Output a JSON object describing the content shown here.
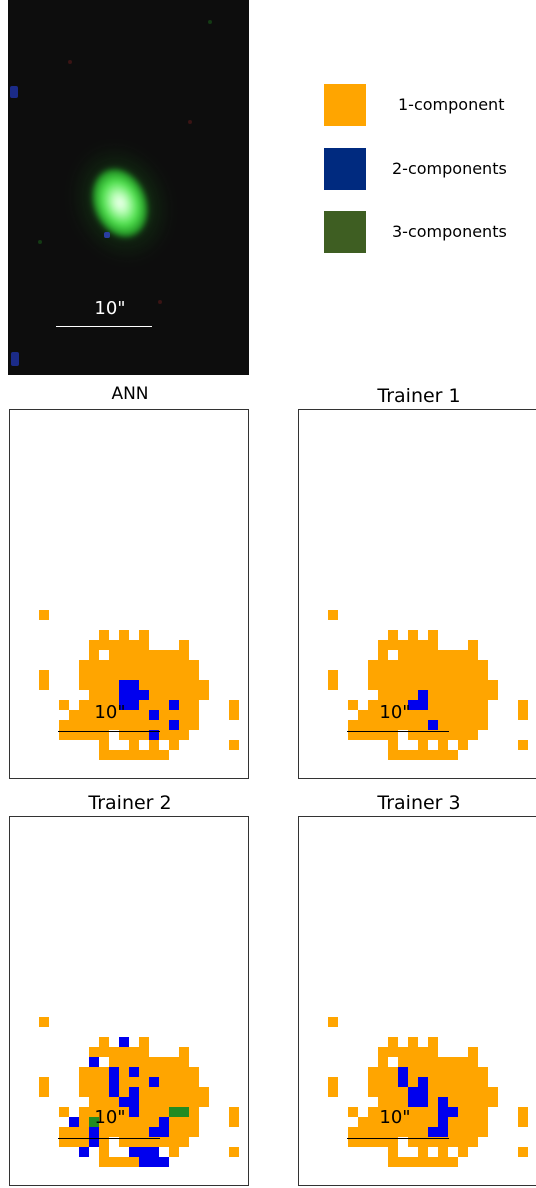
{
  "galaxy_image": {
    "scale_label": "10\""
  },
  "legend": [
    {
      "label": "1-component",
      "color": "#ffa500"
    },
    {
      "label": "2-components",
      "color": "#002a7f"
    },
    {
      "label": "3-components",
      "color": "#3e5e22"
    }
  ],
  "colors": {
    "orange": "#ffa500",
    "blue": "#0000ee",
    "green": "#228b22"
  },
  "panels": [
    {
      "title": "ANN",
      "scale_label": "10\"",
      "blue": [
        "9,17",
        "10,17",
        "9,18",
        "10,18",
        "11,18",
        "9,19",
        "10,19",
        "14,19",
        "12,20",
        "14,21",
        "12,22"
      ],
      "green": []
    },
    {
      "title": "Trainer 1",
      "scale_label": "10\"",
      "blue": [
        "10,18",
        "9,19",
        "10,19",
        "11,21"
      ],
      "green": []
    },
    {
      "title": "Trainer 2",
      "scale_label": "10\"",
      "blue": [
        "9,12",
        "6,14",
        "8,15",
        "10,15",
        "8,16",
        "12,16",
        "8,17",
        "10,17",
        "9,18",
        "10,18",
        "10,19",
        "4,20",
        "13,20",
        "13,21",
        "12,21",
        "6,21",
        "6,22",
        "5,23",
        "10,23",
        "11,23",
        "12,23",
        "11,24",
        "12,24",
        "13,24"
      ],
      "green": [
        "6,20",
        "14,19",
        "15,19"
      ]
    },
    {
      "title": "Trainer 3",
      "scale_label": "10\"",
      "blue": [
        "8,15",
        "8,16",
        "10,16",
        "9,17",
        "10,17",
        "9,18",
        "10,18",
        "12,18",
        "12,19",
        "13,19",
        "12,20",
        "11,21",
        "12,21"
      ],
      "green": []
    }
  ]
}
